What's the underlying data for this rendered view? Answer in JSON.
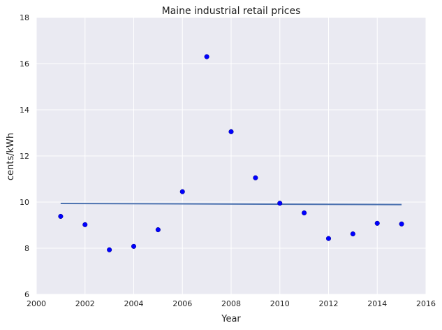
{
  "chart_data": {
    "type": "scatter",
    "title": "Maine   industrial retail prices",
    "xlabel": "Year",
    "ylabel": "cents/kWh",
    "xlim": [
      2000,
      2016
    ],
    "ylim": [
      6,
      18
    ],
    "xticks": [
      "2000",
      "2002",
      "2004",
      "2006",
      "2008",
      "2010",
      "2012",
      "2014",
      "2016"
    ],
    "yticks": [
      "6",
      "8",
      "10",
      "12",
      "14",
      "16",
      "18"
    ],
    "grid": true,
    "points": {
      "x": [
        2001,
        2002,
        2003,
        2004,
        2005,
        2006,
        2007,
        2008,
        2009,
        2010,
        2011,
        2012,
        2013,
        2014,
        2015
      ],
      "y": [
        9.38,
        9.02,
        7.93,
        8.08,
        8.8,
        10.45,
        16.3,
        13.05,
        11.05,
        9.95,
        9.53,
        8.42,
        8.62,
        9.08,
        9.05
      ]
    },
    "trend_line": {
      "x": [
        2001,
        2015
      ],
      "y": [
        9.94,
        9.89
      ]
    },
    "colors": {
      "background": "#eaeaf2",
      "grid": "#ffffff",
      "points": "#0000ff",
      "trend_line": "#4c72b0"
    }
  }
}
